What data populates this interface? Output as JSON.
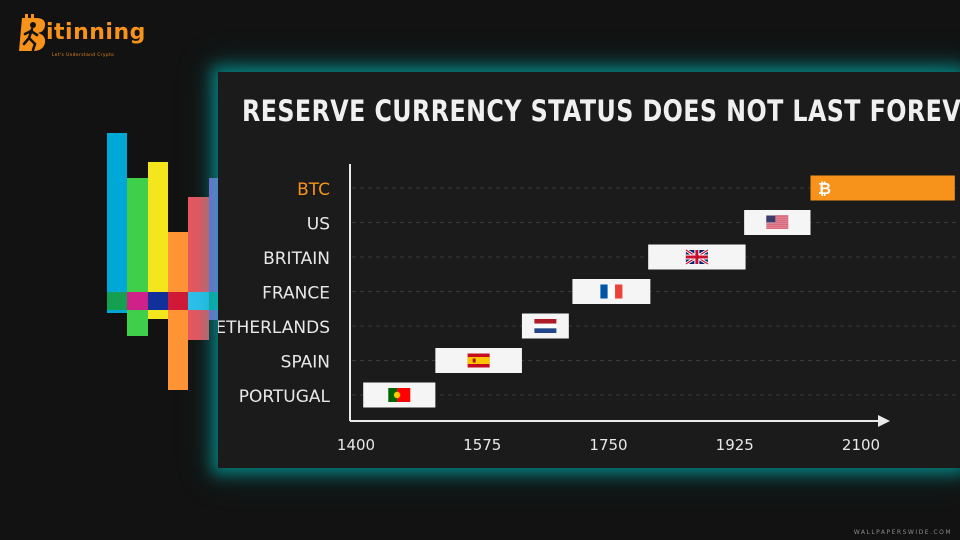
{
  "brand": {
    "name": "itinning",
    "tagline": "Let's Understand Crypto",
    "color": "#f7931a"
  },
  "watermark": "WALLPAPERSWIDE.COM",
  "colors": {
    "panel_glow": "#00bebe",
    "btc_accent": "#f7931a",
    "bar_fill": "#f5f5f5",
    "text": "#e8e8e8"
  },
  "chart_data": {
    "type": "bar",
    "subtype": "timeline-gantt",
    "title": "RESERVE CURRENCY STATUS DOES NOT LAST FOREVER",
    "xlabel": "",
    "ylabel": "",
    "xlim": [
      1400,
      2100
    ],
    "x_ticks": [
      1400,
      1575,
      1750,
      1925,
      2100
    ],
    "categories": [
      "BTC",
      "US",
      "BRITAIN",
      "FRANCE",
      "NETHERLANDS",
      "SPAIN",
      "PORTUGAL"
    ],
    "series": [
      {
        "category": "PORTUGAL",
        "start": 1410,
        "end": 1510,
        "icon": "portugal-flag-icon"
      },
      {
        "category": "SPAIN",
        "start": 1510,
        "end": 1630,
        "icon": "spain-flag-icon"
      },
      {
        "category": "NETHERLANDS",
        "start": 1630,
        "end": 1695,
        "icon": "netherlands-flag-icon"
      },
      {
        "category": "FRANCE",
        "start": 1700,
        "end": 1808,
        "icon": "france-flag-icon"
      },
      {
        "category": "BRITAIN",
        "start": 1805,
        "end": 1940,
        "icon": "uk-flag-icon"
      },
      {
        "category": "US",
        "start": 1938,
        "end": 2030,
        "icon": "us-flag-icon"
      },
      {
        "category": "BTC",
        "start": 2030,
        "end": 2230,
        "icon": "bitcoin-icon",
        "highlight": true
      }
    ],
    "grid": "horizontal-dashed",
    "legend": "none"
  }
}
